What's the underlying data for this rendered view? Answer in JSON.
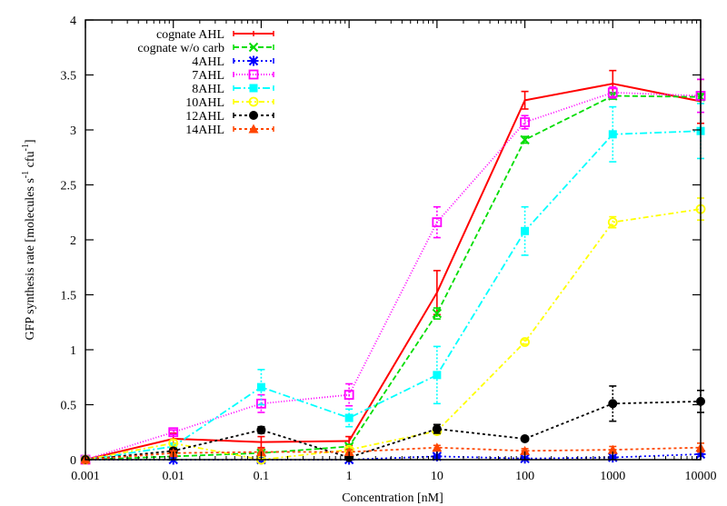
{
  "chart_data": {
    "type": "line",
    "title": "",
    "xlabel": "Concentration [nM]",
    "ylabel": "GFP synthesis rate [molecules s-1 cfu-1]",
    "ylabel_parts": {
      "main": "GFP synthesis rate [molecules s",
      "sup1": "-1",
      "mid": " cfu",
      "sup2": "-1",
      "end": "]"
    },
    "xscale": "log",
    "x": [
      0.001,
      0.01,
      0.1,
      1,
      10,
      100,
      1000,
      10000
    ],
    "x_tick_labels": [
      "0.001",
      "0.01",
      "0.1",
      "1",
      "10",
      "100",
      "1000",
      "10000"
    ],
    "y_ticks": [
      0,
      0.5,
      1,
      1.5,
      2,
      2.5,
      3,
      3.5,
      4
    ],
    "y_tick_labels": [
      "0",
      "0.5",
      "1",
      "1.5",
      "2",
      "2.5",
      "3",
      "3.5",
      "4"
    ],
    "xlim": [
      0.001,
      10000
    ],
    "ylim": [
      0,
      4
    ],
    "grid": false,
    "legend_position": "top-left",
    "series": [
      {
        "name": "cognate AHL",
        "color": "#ff0000",
        "dash": "",
        "marker": "none",
        "values": [
          0.0,
          0.19,
          0.16,
          0.17,
          1.52,
          3.27,
          3.42,
          3.26
        ],
        "errors": [
          0.0,
          0.05,
          0.05,
          0.04,
          0.2,
          0.08,
          0.12,
          0.2
        ]
      },
      {
        "name": "cognate w/o carb",
        "color": "#00dd00",
        "dash": "6,3",
        "marker": "x",
        "values": [
          0.0,
          0.03,
          0.06,
          0.12,
          1.33,
          2.91,
          3.31,
          3.3
        ],
        "errors": [
          0.0,
          0.01,
          0.01,
          0.02,
          0.05,
          0.03,
          0.03,
          0.03
        ]
      },
      {
        "name": "4AHL",
        "color": "#0000ff",
        "dash": "2,3",
        "marker": "star",
        "values": [
          0.0,
          0.0,
          0.0,
          0.0,
          0.03,
          0.01,
          0.02,
          0.05
        ],
        "errors": [
          0.0,
          0.0,
          0.0,
          0.0,
          0.01,
          0.01,
          0.01,
          0.02
        ]
      },
      {
        "name": "7AHL",
        "color": "#ff00ff",
        "dash": "1,2",
        "marker": "open-square",
        "values": [
          0.0,
          0.25,
          0.51,
          0.59,
          2.16,
          3.07,
          3.34,
          3.31
        ],
        "errors": [
          0.0,
          0.02,
          0.08,
          0.1,
          0.14,
          0.06,
          0.05,
          0.15
        ]
      },
      {
        "name": "8AHL",
        "color": "#00ffff",
        "dash": "8,3,2,3",
        "marker": "filled-square",
        "values": [
          0.0,
          0.12,
          0.66,
          0.38,
          0.77,
          2.08,
          2.96,
          2.99
        ],
        "errors": [
          0.0,
          0.02,
          0.16,
          0.08,
          0.26,
          0.22,
          0.25,
          0.25
        ]
      },
      {
        "name": "10AHL",
        "color": "#ffff00",
        "dash": "6,3,2,3",
        "marker": "open-circle",
        "values": [
          0.0,
          0.15,
          0.0,
          0.09,
          0.26,
          1.07,
          2.16,
          2.28
        ],
        "errors": [
          0.0,
          0.03,
          0.01,
          0.02,
          0.03,
          0.02,
          0.05,
          0.1
        ]
      },
      {
        "name": "12AHL",
        "color": "#000000",
        "dash": "3,3",
        "marker": "filled-circle",
        "values": [
          0.0,
          0.08,
          0.27,
          0.02,
          0.28,
          0.19,
          0.51,
          0.53
        ],
        "errors": [
          0.0,
          0.02,
          0.03,
          0.01,
          0.04,
          0.02,
          0.16,
          0.1
        ]
      },
      {
        "name": "14AHL",
        "color": "#ff4500",
        "dash": "3,3",
        "marker": "filled-triangle",
        "values": [
          0.0,
          0.06,
          0.07,
          0.07,
          0.11,
          0.08,
          0.09,
          0.11
        ],
        "errors": [
          0.0,
          0.02,
          0.03,
          0.02,
          0.02,
          0.02,
          0.03,
          0.04
        ]
      }
    ]
  }
}
